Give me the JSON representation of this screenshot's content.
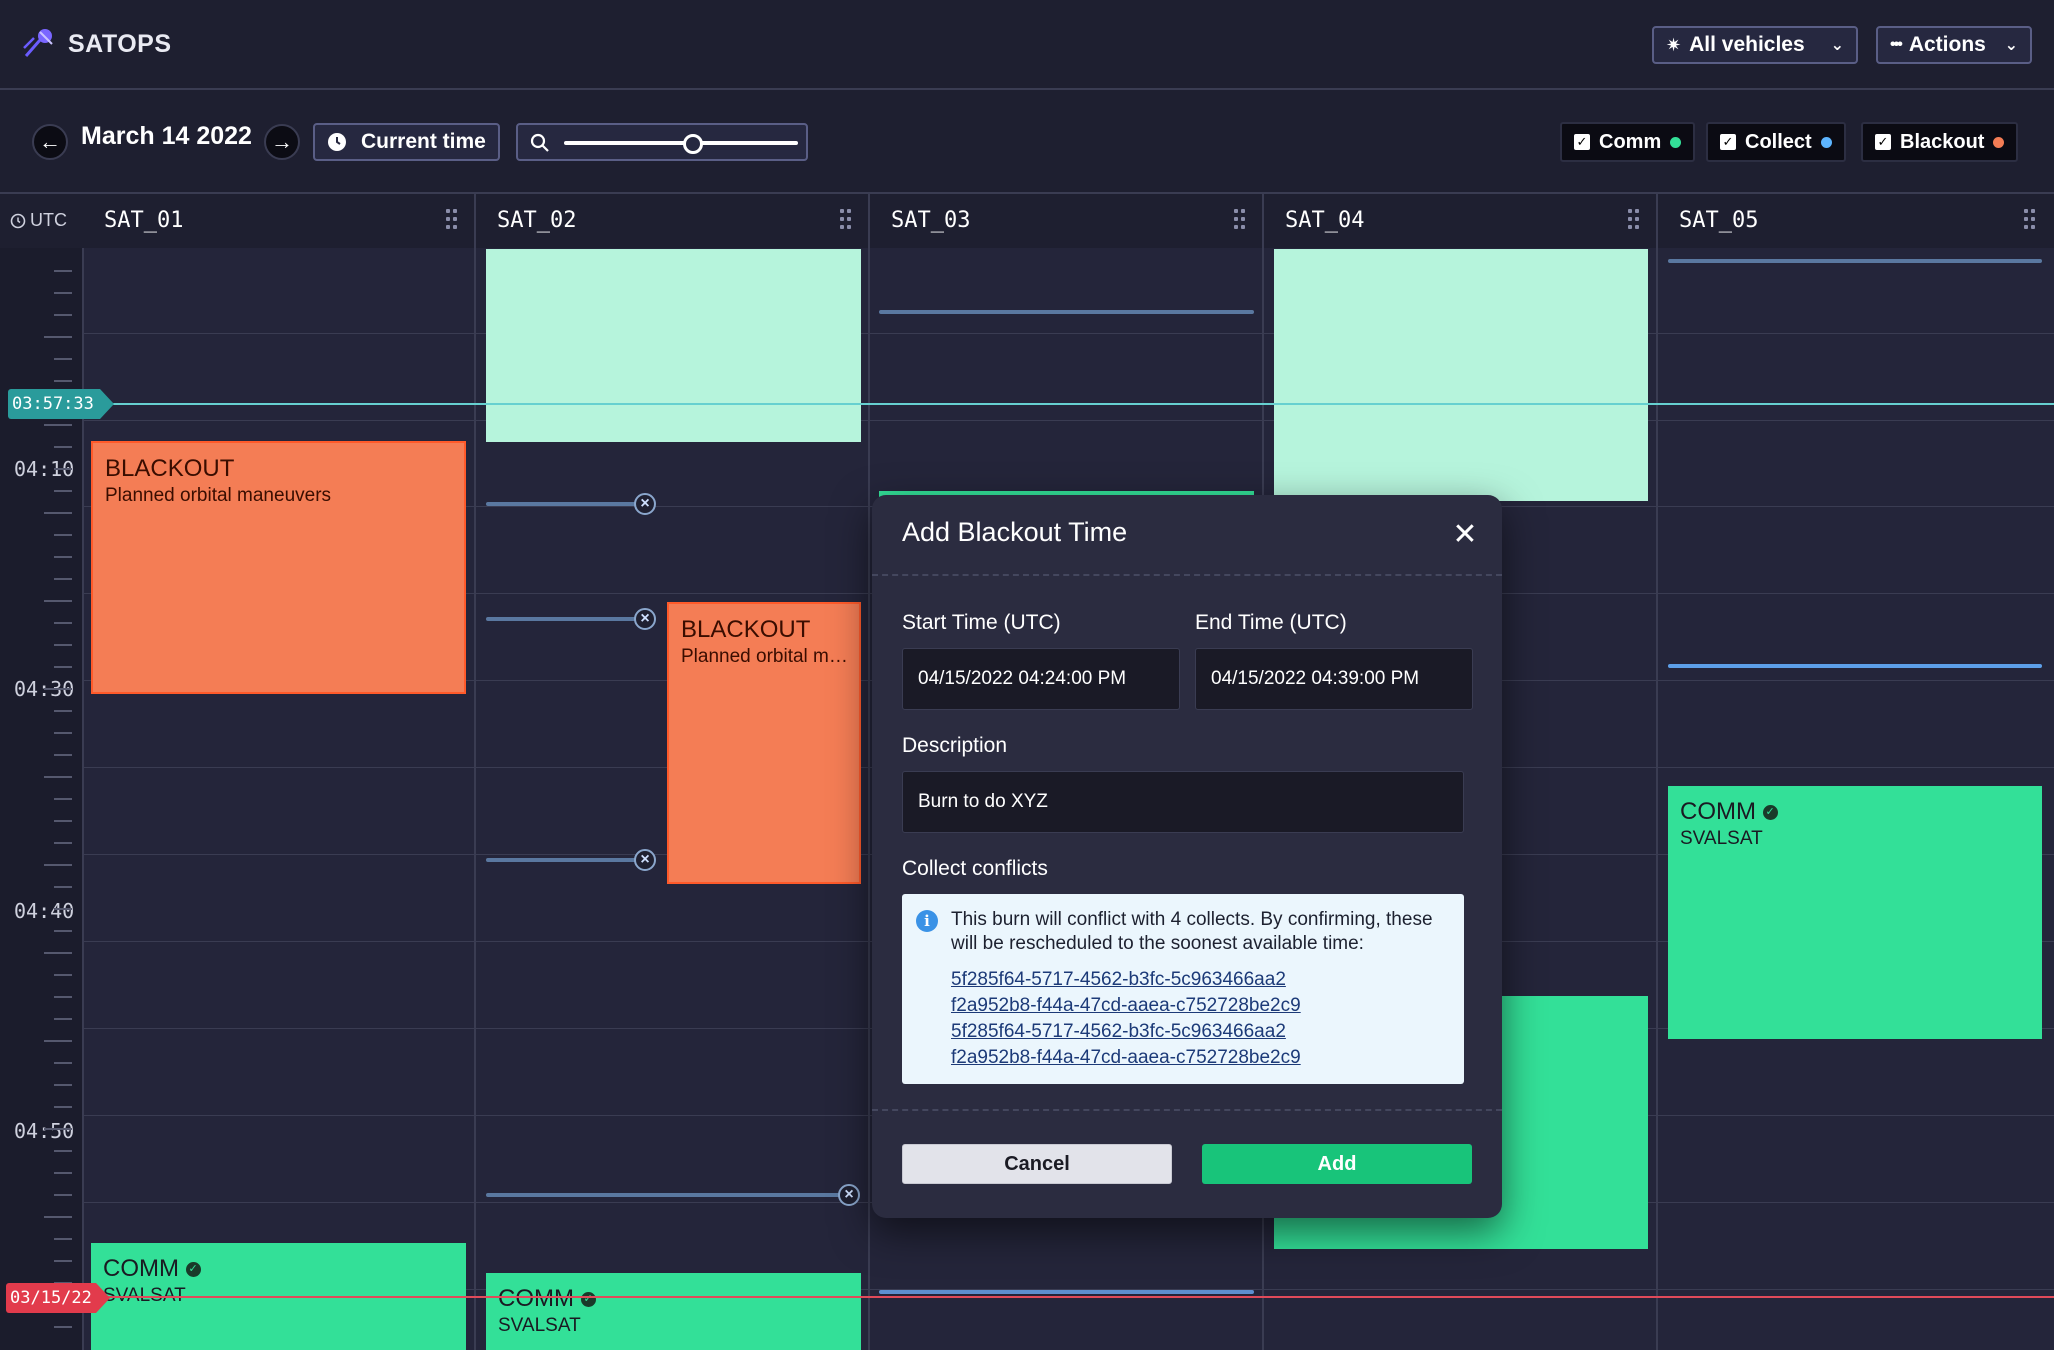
{
  "app": {
    "name": "SATOPS"
  },
  "header": {
    "vehicles_label": "All vehicles",
    "actions_label": "Actions"
  },
  "toolbar": {
    "date": "March 14 2022",
    "current_time_label": "Current time",
    "zoom_level": 0.55,
    "filters": [
      {
        "label": "Comm",
        "checked": true,
        "color": "#33e098"
      },
      {
        "label": "Collect",
        "checked": true,
        "color": "#5db5ff"
      },
      {
        "label": "Blackout",
        "checked": true,
        "color": "#f47d55"
      }
    ]
  },
  "timeline": {
    "timezone": "UTC",
    "columns": [
      "SAT_01",
      "SAT_02",
      "SAT_03",
      "SAT_04",
      "SAT_05"
    ],
    "time_labels": [
      "04:10",
      "04:30",
      "04:40",
      "04:50"
    ],
    "current_time": "03:57:33",
    "day_marker": "03/15/22"
  },
  "events": {
    "sat01_blackout": {
      "type": "BLACKOUT",
      "description": "Planned orbital maneuvers"
    },
    "sat02_blackout": {
      "type": "BLACKOUT",
      "description": "Planned orbital maneuvers"
    },
    "sat01_comm": {
      "type": "COMM",
      "station": "SVALSAT"
    },
    "sat02_comm": {
      "type": "COMM",
      "station": "SVALSAT"
    },
    "sat05_comm": {
      "type": "COMM",
      "station": "SVALSAT"
    }
  },
  "modal": {
    "title": "Add Blackout Time",
    "start_label": "Start Time (UTC)",
    "start_value": "04/15/2022 04:24:00 PM",
    "end_label": "End Time (UTC)",
    "end_value": "04/15/2022 04:39:00 PM",
    "description_label": "Description",
    "description_value": "Burn to do XYZ",
    "conflicts_label": "Collect conflicts",
    "conflicts_message": "This burn will conflict with 4 collects. By confirming, these will be rescheduled to the soonest available time:",
    "conflict_ids": [
      "5f285f64-5717-4562-b3fc-5c963466aa2",
      "f2a952b8-f44a-47cd-aaea-c752728be2c9",
      "5f285f64-5717-4562-b3fc-5c963466aa2",
      "f2a952b8-f44a-47cd-aaea-c752728be2c9"
    ],
    "cancel_label": "Cancel",
    "add_label": "Add"
  }
}
